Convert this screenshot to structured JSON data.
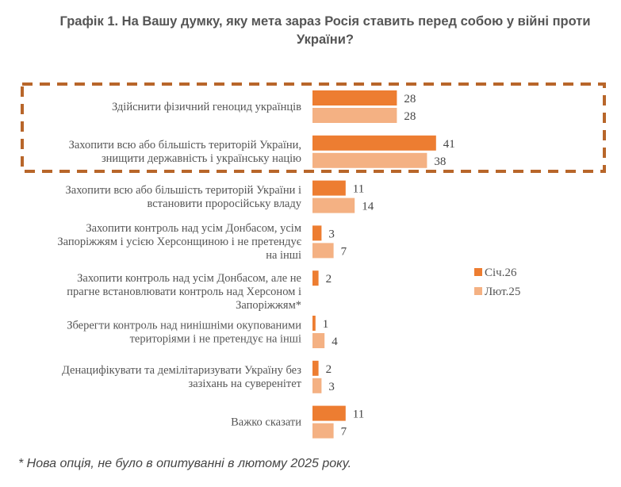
{
  "chart_data": {
    "type": "bar",
    "orientation": "horizontal",
    "title": "Графік 1. На Вашу думку, яку мета зараз Росія ставить перед собою у війні проти України?",
    "title_lines": [
      "Графік 1. На Вашу думку, яку мета зараз Росія ставить перед собою у війні проти",
      "України?"
    ],
    "xlabel": "",
    "ylabel": "",
    "xlim": [
      0,
      45
    ],
    "grid": false,
    "legend_position": "right",
    "categories": [
      "Здійснити фізичний геноцид українців",
      "Захопити всю або більшість територій України, знищити державність і українську націю",
      "Захопити всю або більшість територій України і встановити проросійську владу",
      "Захопити контроль над усім Донбасом, усім Запоріжжям і усією Херсонщиною і не претендує на інші",
      "Захопити контроль над усім Донбасом, але не прагне встановлювати контроль над Херсоном і Запоріжжям*",
      "Зберегти контроль над нинішніми окупованими територіями і не претендує на інші",
      "Денацифікувати та демілітаризувати Україну без зазіхань на суверенітет",
      "Важко сказати"
    ],
    "category_lines": [
      [
        "Здійснити фізичний геноцид українців"
      ],
      [
        "Захопити всю або більшість територій України,",
        "знищити державність і українську націю"
      ],
      [
        "Захопити всю або більшість територій України і",
        "встановити проросійську владу"
      ],
      [
        "Захопити контроль над усім Донбасом, усім",
        "Запоріжжям і усією Херсонщиною і не претендує",
        "на інші"
      ],
      [
        "Захопити контроль над усім Донбасом, але не",
        "прагне встановлювати контроль над Херсоном і",
        "Запоріжжям*"
      ],
      [
        "Зберегти контроль над нинішніми окупованими",
        "територіями і не претендує на інші"
      ],
      [
        "Денацифікувати та демілітаризувати Україну без",
        "зазіхань на суверенітет"
      ],
      [
        "Важко сказати"
      ]
    ],
    "series": [
      {
        "name": "Січ.26",
        "color": "#ED7D31",
        "values": [
          28,
          41,
          11,
          3,
          2,
          1,
          2,
          11
        ]
      },
      {
        "name": "Лют.25",
        "color": "#F4B183",
        "values": [
          28,
          38,
          14,
          7,
          null,
          4,
          3,
          7
        ]
      }
    ],
    "highlight": {
      "categories": [
        0,
        1
      ],
      "style": "dashed-box",
      "color": "#B8662A"
    },
    "annotations": [
      "* Нова опція, не було в опитуванні в лютому 2025 року."
    ]
  }
}
